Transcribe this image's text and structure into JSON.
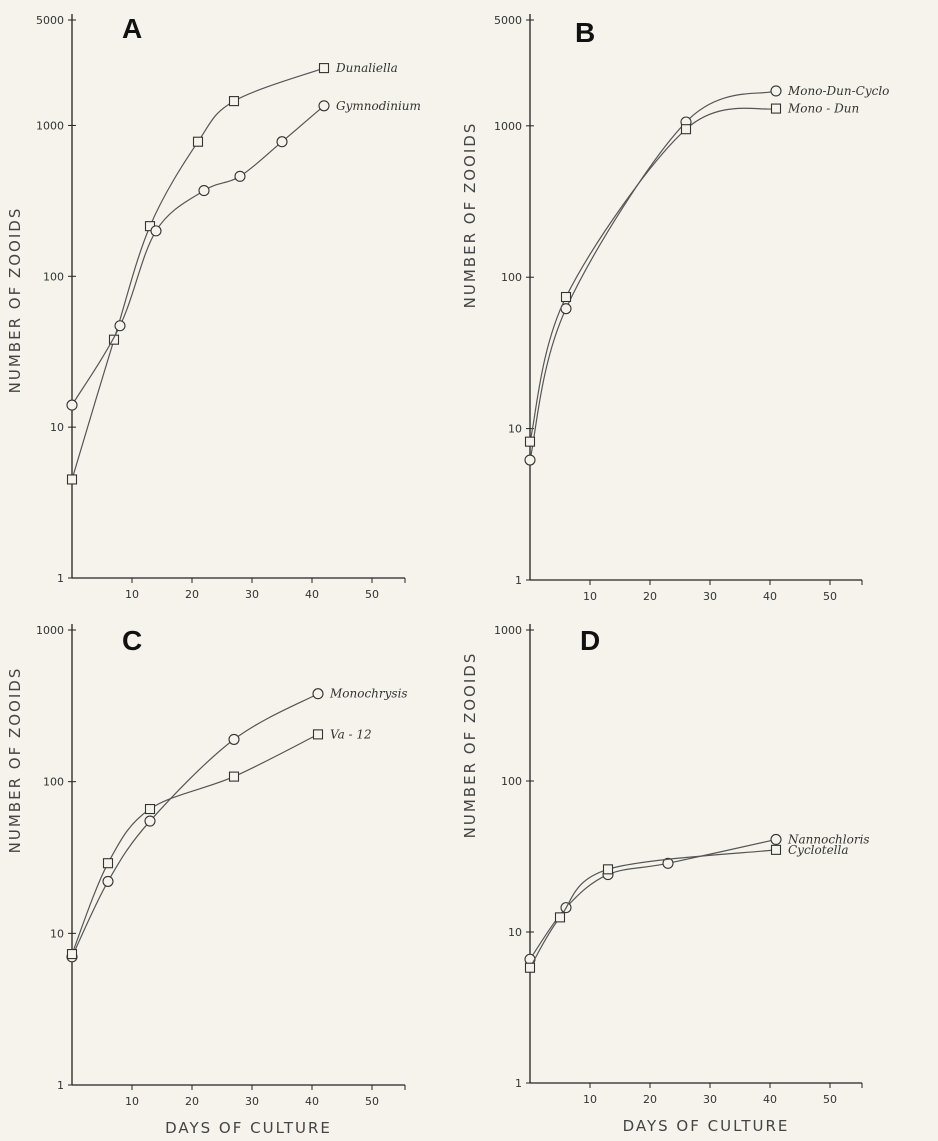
{
  "figure": {
    "xlabel": "DAYS OF CULTURE",
    "ylabel": "NUMBER OF ZOOIDS"
  },
  "chart_data": [
    {
      "panel": "A",
      "type": "line",
      "yscale": "log",
      "ylim": [
        1,
        5000
      ],
      "xlim": [
        0,
        55
      ],
      "yticks": [
        1,
        10,
        100,
        1000,
        5000
      ],
      "yticklabels": [
        "1",
        "10",
        "100",
        "1000",
        "5000"
      ],
      "xticks": [
        10,
        20,
        30,
        40,
        50
      ],
      "xticklabels": [
        "10",
        "20",
        "30",
        "40",
        "50"
      ],
      "xlabel": "",
      "ylabel": "NUMBER OF ZOOIDS",
      "series": [
        {
          "name": "Dunaliella",
          "marker": "square",
          "x": [
            0,
            7,
            13,
            21,
            27,
            42
          ],
          "y": [
            4.5,
            38,
            215,
            780,
            1450,
            2400
          ]
        },
        {
          "name": "Gymnodinium",
          "marker": "circle",
          "x": [
            0,
            8,
            14,
            22,
            28,
            35,
            42
          ],
          "y": [
            14,
            47,
            200,
            370,
            460,
            780,
            1350
          ]
        }
      ]
    },
    {
      "panel": "B",
      "type": "line",
      "yscale": "log",
      "ylim": [
        1,
        5000
      ],
      "xlim": [
        0,
        55
      ],
      "yticks": [
        1,
        10,
        100,
        1000,
        5000
      ],
      "yticklabels": [
        "1",
        "10",
        "100",
        "1000",
        "5000"
      ],
      "xticks": [
        10,
        20,
        30,
        40,
        50
      ],
      "xticklabels": [
        "10",
        "20",
        "30",
        "40",
        "50"
      ],
      "xlabel": "",
      "ylabel": "NUMBER OF ZOOIDS",
      "series": [
        {
          "name": "Mono-Dun-Cyclo",
          "marker": "circle",
          "x": [
            0,
            6,
            26,
            41
          ],
          "y": [
            6.2,
            62,
            1060,
            1700
          ]
        },
        {
          "name": "Mono - Dun",
          "marker": "square",
          "x": [
            0,
            6,
            26,
            41
          ],
          "y": [
            8.2,
            74,
            950,
            1300
          ]
        }
      ]
    },
    {
      "panel": "C",
      "type": "line",
      "yscale": "log",
      "ylim": [
        1,
        1000
      ],
      "xlim": [
        0,
        55
      ],
      "yticks": [
        1,
        10,
        100,
        1000
      ],
      "yticklabels": [
        "1",
        "10",
        "100",
        "1000"
      ],
      "xticks": [
        10,
        20,
        30,
        40,
        50
      ],
      "xticklabels": [
        "10",
        "20",
        "30",
        "40",
        "50"
      ],
      "xlabel": "DAYS OF CULTURE",
      "ylabel": "NUMBER OF ZOOIDS",
      "series": [
        {
          "name": "Monochrysis",
          "marker": "circle",
          "x": [
            0,
            6,
            13,
            27,
            41
          ],
          "y": [
            7,
            22,
            55,
            190,
            380
          ]
        },
        {
          "name": "Va - 12",
          "marker": "square",
          "x": [
            0,
            6,
            13,
            27,
            41
          ],
          "y": [
            7.3,
            29,
            66,
            108,
            205
          ]
        }
      ]
    },
    {
      "panel": "D",
      "type": "line",
      "yscale": "log",
      "ylim": [
        1,
        1000
      ],
      "xlim": [
        0,
        55
      ],
      "yticks": [
        1,
        10,
        100,
        1000
      ],
      "yticklabels": [
        "1",
        "10",
        "100",
        "1000"
      ],
      "xticks": [
        10,
        20,
        30,
        40,
        50
      ],
      "xticklabels": [
        "10",
        "20",
        "30",
        "40",
        "50"
      ],
      "xlabel": "DAYS OF CULTURE",
      "ylabel": "NUMBER OF ZOOIDS",
      "series": [
        {
          "name": "Nannochloris",
          "marker": "circle",
          "x": [
            0,
            6,
            13,
            23,
            41
          ],
          "y": [
            6.6,
            14.5,
            24,
            28.5,
            41
          ]
        },
        {
          "name": "Cyclotella",
          "marker": "square",
          "x": [
            0,
            5,
            13,
            41
          ],
          "y": [
            5.8,
            12.5,
            26,
            35
          ]
        }
      ]
    }
  ]
}
